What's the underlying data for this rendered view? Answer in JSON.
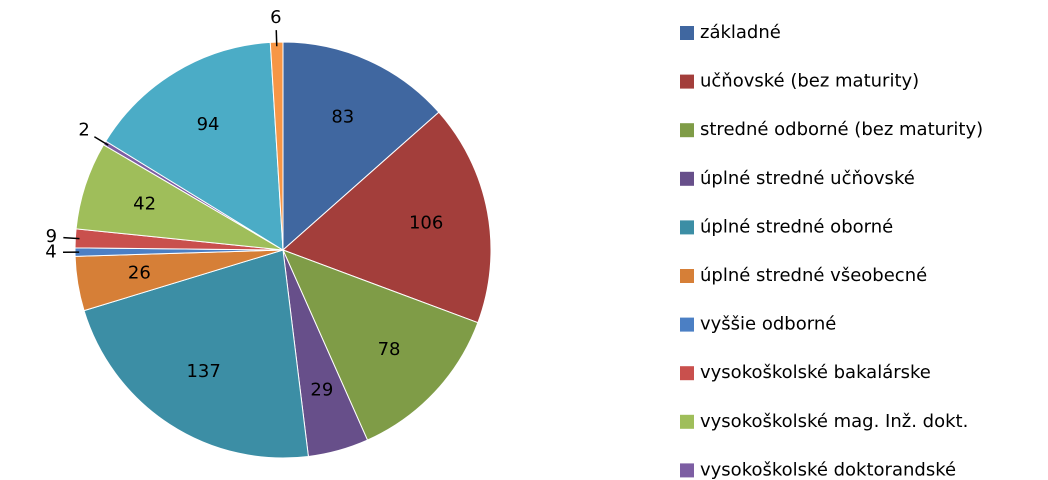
{
  "chart_data": {
    "type": "pie",
    "categories": [
      "základné",
      "učňovské (bez maturity)",
      "stredné odborné (bez maturity)",
      "úplné stredné učňovské",
      "úplné stredné oborné",
      "úplné stredné všeobecné",
      "vyššie odborné",
      "vysokoškolské bakalárske",
      "vysokoškolské mag. Inž. dokt.",
      "vysokoškolské doktorandské",
      null,
      null
    ],
    "values": [
      83,
      106,
      78,
      29,
      137,
      26,
      4,
      9,
      42,
      2,
      94,
      6
    ],
    "colors": [
      "#4067a0",
      "#a33e3b",
      "#7f9c47",
      "#674f8a",
      "#3c8ea5",
      "#d67f37",
      "#4b7fc4",
      "#c9504d",
      "#9fbe5a",
      "#7d5ea3",
      "#4bacc6",
      "#f79646"
    ],
    "legend": "right"
  }
}
